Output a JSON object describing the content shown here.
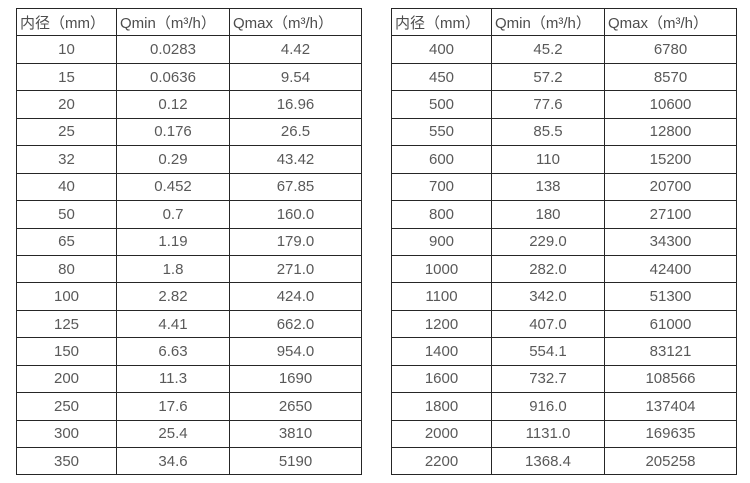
{
  "page": {
    "background_color": "#ffffff",
    "border_color": "#262626",
    "text_color": "#595959"
  },
  "tables": [
    {
      "name": "flow-rate-table-small-diameters",
      "headers": [
        "内径（mm）",
        "Qmin（m³/h）",
        "Qmax（m³/h）"
      ],
      "rows": [
        [
          "10",
          "0.0283",
          "4.42"
        ],
        [
          "15",
          "0.0636",
          "9.54"
        ],
        [
          "20",
          "0.12",
          "16.96"
        ],
        [
          "25",
          "0.176",
          "26.5"
        ],
        [
          "32",
          "0.29",
          "43.42"
        ],
        [
          "40",
          "0.452",
          "67.85"
        ],
        [
          "50",
          "0.7",
          "160.0"
        ],
        [
          "65",
          "1.19",
          "179.0"
        ],
        [
          "80",
          "1.8",
          "271.0"
        ],
        [
          "100",
          "2.82",
          "424.0"
        ],
        [
          "125",
          "4.41",
          "662.0"
        ],
        [
          "150",
          "6.63",
          "954.0"
        ],
        [
          "200",
          "11.3",
          "1690"
        ],
        [
          "250",
          "17.6",
          "2650"
        ],
        [
          "300",
          "25.4",
          "3810"
        ],
        [
          "350",
          "34.6",
          "5190"
        ]
      ]
    },
    {
      "name": "flow-rate-table-large-diameters",
      "headers": [
        "内径（mm）",
        "Qmin（m³/h）",
        "Qmax（m³/h）"
      ],
      "rows": [
        [
          "400",
          "45.2",
          "6780"
        ],
        [
          "450",
          "57.2",
          "8570"
        ],
        [
          "500",
          "77.6",
          "10600"
        ],
        [
          "550",
          "85.5",
          "12800"
        ],
        [
          "600",
          "110",
          "15200"
        ],
        [
          "700",
          "138",
          "20700"
        ],
        [
          "800",
          "180",
          "27100"
        ],
        [
          "900",
          "229.0",
          "34300"
        ],
        [
          "1000",
          "282.0",
          "42400"
        ],
        [
          "1100",
          "342.0",
          "51300"
        ],
        [
          "1200",
          "407.0",
          "61000"
        ],
        [
          "1400",
          "554.1",
          "83121"
        ],
        [
          "1600",
          "732.7",
          "108566"
        ],
        [
          "1800",
          "916.0",
          "137404"
        ],
        [
          "2000",
          "1131.0",
          "169635"
        ],
        [
          "2200",
          "1368.4",
          "205258"
        ]
      ]
    }
  ]
}
